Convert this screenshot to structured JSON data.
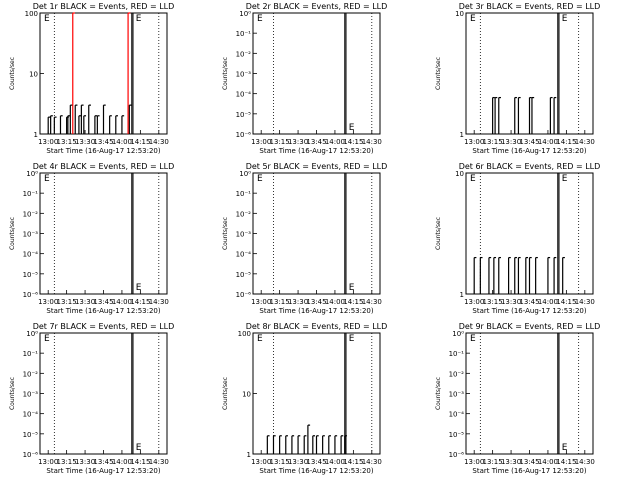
{
  "chart_data": [
    {
      "type": "line",
      "title": "Det 1r BLACK = Events, RED = LLD",
      "xlabel": "Start Time (16-Aug-17 12:53:20)",
      "ylabel": "Counts/sec",
      "x_ticks": [
        "13:00",
        "13:15",
        "13:30",
        "13:45",
        "14:00",
        "14:15",
        "14:30"
      ],
      "xlim": [
        "12:53:20",
        "14:36:40"
      ],
      "y_ticks": [
        "1",
        "10",
        "100"
      ],
      "ylim": [
        1,
        100
      ],
      "yscale": "log",
      "vlines_dotted": [
        "13:05",
        "14:30"
      ],
      "vlines_solid": [
        "14:08",
        "14:09"
      ],
      "annotations": [
        "E",
        "E"
      ],
      "series": [
        {
          "color": "#000000",
          "x": [
            "13:00",
            "13:02",
            "13:05",
            "13:10",
            "13:15",
            "13:16",
            "13:18",
            "13:22",
            "13:25",
            "13:27",
            "13:29",
            "13:33",
            "13:38",
            "13:40",
            "13:45",
            "13:50",
            "13:55",
            "14:00",
            "14:06"
          ],
          "y": [
            1.9,
            2.0,
            1.9,
            2.0,
            1.9,
            2.0,
            3.0,
            3.0,
            2.0,
            3.0,
            2.0,
            3.0,
            2.0,
            2.0,
            3.0,
            2.0,
            2.0,
            2.0,
            3.0
          ]
        },
        {
          "color": "#ff0000",
          "x": [
            "13:20",
            "14:05"
          ],
          "y": [
            100,
            100
          ]
        }
      ]
    },
    {
      "type": "line",
      "title": "Det 2r BLACK = Events, RED = LLD",
      "xlabel": "Start Time (16-Aug-17 12:53:20)",
      "ylabel": "Counts/sec",
      "x_ticks": [
        "13:00",
        "13:15",
        "13:30",
        "13:45",
        "14:00",
        "14:15",
        "14:30"
      ],
      "xlim": [
        "12:53:20",
        "14:36:40"
      ],
      "y_ticks": [
        "10⁰",
        "10⁻¹",
        "10⁻²",
        "10⁻³",
        "10⁻⁴",
        "10⁻⁵",
        "10⁻⁶"
      ],
      "ylim": [
        1e-06,
        1
      ],
      "yscale": "log",
      "vlines_dotted": [
        "13:10",
        "14:30"
      ],
      "vlines_solid": [
        "14:08",
        "14:09"
      ],
      "annotations": [
        "E",
        "E"
      ],
      "series": []
    },
    {
      "type": "line",
      "title": "Det 3r BLACK = Events, RED = LLD",
      "xlabel": "Start Time (16-Aug-17 12:53:20)",
      "ylabel": "Counts/sec",
      "x_ticks": [
        "13:00",
        "13:15",
        "13:30",
        "13:45",
        "14:00",
        "14:15",
        "14:30"
      ],
      "xlim": [
        "12:53:20",
        "14:36:40"
      ],
      "y_ticks": [
        "1",
        "10"
      ],
      "ylim": [
        1,
        10
      ],
      "yscale": "log",
      "vlines_dotted": [
        "13:05",
        "14:25"
      ],
      "vlines_solid": [
        "14:08",
        "14:09"
      ],
      "annotations": [
        "E",
        "E"
      ],
      "series": [
        {
          "color": "#000000",
          "x": [
            "13:15",
            "13:17",
            "13:20",
            "13:33",
            "13:36",
            "13:45",
            "13:47",
            "14:02",
            "14:05"
          ],
          "y": [
            2,
            2,
            2,
            2,
            2,
            2,
            2,
            2,
            2
          ]
        }
      ]
    },
    {
      "type": "line",
      "title": "Det 4r BLACK = Events, RED = LLD",
      "xlabel": "Start Time (16-Aug-17 12:53:20)",
      "ylabel": "Counts/sec",
      "x_ticks": [
        "13:00",
        "13:15",
        "13:30",
        "13:45",
        "14:00",
        "14:15",
        "14:30"
      ],
      "xlim": [
        "12:53:20",
        "14:36:40"
      ],
      "y_ticks": [
        "10⁰",
        "10⁻¹",
        "10⁻²",
        "10⁻³",
        "10⁻⁴",
        "10⁻⁵",
        "10⁻⁶"
      ],
      "ylim": [
        1e-06,
        1
      ],
      "yscale": "log",
      "vlines_dotted": [
        "13:05",
        "14:30"
      ],
      "vlines_solid": [
        "14:08",
        "14:09"
      ],
      "annotations": [
        "E",
        "E"
      ],
      "series": []
    },
    {
      "type": "line",
      "title": "Det 5r BLACK = Events, RED = LLD",
      "xlabel": "Start Time (16-Aug-17 12:53:20)",
      "ylabel": "Counts/sec",
      "x_ticks": [
        "13:00",
        "13:15",
        "13:30",
        "13:45",
        "14:00",
        "14:15",
        "14:30"
      ],
      "xlim": [
        "12:53:20",
        "14:36:40"
      ],
      "y_ticks": [
        "10⁰",
        "10⁻¹",
        "10⁻²",
        "10⁻³",
        "10⁻⁴",
        "10⁻⁵",
        "10⁻⁶"
      ],
      "ylim": [
        1e-06,
        1
      ],
      "yscale": "log",
      "vlines_dotted": [
        "13:10",
        "14:30"
      ],
      "vlines_solid": [
        "14:08",
        "14:09"
      ],
      "annotations": [
        "E",
        "E"
      ],
      "series": []
    },
    {
      "type": "line",
      "title": "Det 6r BLACK = Events, RED = LLD",
      "xlabel": "Start Time (16-Aug-17 12:53:20)",
      "ylabel": "Counts/sec",
      "x_ticks": [
        "13:00",
        "13:15",
        "13:30",
        "13:45",
        "14:00",
        "14:15",
        "14:30"
      ],
      "xlim": [
        "12:53:20",
        "14:36:40"
      ],
      "y_ticks": [
        "1",
        "10"
      ],
      "ylim": [
        1,
        10
      ],
      "yscale": "log",
      "vlines_dotted": [
        "13:05",
        "14:25"
      ],
      "vlines_solid": [
        "14:08",
        "14:09"
      ],
      "annotations": [
        "E",
        "E"
      ],
      "series": [
        {
          "color": "#000000",
          "x": [
            "13:00",
            "13:05",
            "13:12",
            "13:16",
            "13:20",
            "13:28",
            "13:33",
            "13:36",
            "13:42",
            "13:45",
            "13:50",
            "14:00",
            "14:05",
            "14:12"
          ],
          "y": [
            2,
            2,
            2,
            2,
            2,
            2,
            2,
            2,
            2,
            2,
            2,
            2,
            2,
            2
          ]
        }
      ]
    },
    {
      "type": "line",
      "title": "Det 7r BLACK = Events, RED = LLD",
      "xlabel": "Start Time (16-Aug-17 12:53:20)",
      "ylabel": "Counts/sec",
      "x_ticks": [
        "13:00",
        "13:15",
        "13:30",
        "13:45",
        "14:00",
        "14:15",
        "14:30"
      ],
      "xlim": [
        "12:53:20",
        "14:36:40"
      ],
      "y_ticks": [
        "10⁰",
        "10⁻¹",
        "10⁻²",
        "10⁻³",
        "10⁻⁴",
        "10⁻⁵",
        "10⁻⁶"
      ],
      "ylim": [
        1e-06,
        1
      ],
      "yscale": "log",
      "vlines_dotted": [
        "13:05",
        "14:30"
      ],
      "vlines_solid": [
        "14:08",
        "14:09"
      ],
      "annotations": [
        "E",
        "E"
      ],
      "series": []
    },
    {
      "type": "line",
      "title": "Det 8r BLACK = Events, RED = LLD",
      "xlabel": "Start Time (16-Aug-17 12:53:20)",
      "ylabel": "Counts/sec",
      "x_ticks": [
        "13:00",
        "13:15",
        "13:30",
        "13:45",
        "14:00",
        "14:15",
        "14:30"
      ],
      "xlim": [
        "12:53:20",
        "14:36:40"
      ],
      "y_ticks": [
        "1",
        "10",
        "100"
      ],
      "ylim": [
        1,
        100
      ],
      "yscale": "log",
      "vlines_dotted": [
        "13:10",
        "14:30"
      ],
      "vlines_solid": [
        "14:08",
        "14:09"
      ],
      "annotations": [
        "E",
        "E"
      ],
      "series": [
        {
          "color": "#000000",
          "x": [
            "13:05",
            "13:10",
            "13:15",
            "13:20",
            "13:25",
            "13:30",
            "13:35",
            "13:38",
            "13:42",
            "13:45",
            "13:50",
            "13:55",
            "14:00",
            "14:05",
            "14:08"
          ],
          "y": [
            2,
            2,
            2,
            2,
            2,
            2,
            2,
            3,
            2,
            2,
            2,
            2,
            2,
            2,
            2
          ]
        }
      ]
    },
    {
      "type": "line",
      "title": "Det 9r BLACK = Events, RED = LLD",
      "xlabel": "Start Time (16-Aug-17 12:53:20)",
      "ylabel": "Counts/sec",
      "x_ticks": [
        "13:00",
        "13:15",
        "13:30",
        "13:45",
        "14:00",
        "14:15",
        "14:30"
      ],
      "xlim": [
        "12:53:20",
        "14:36:40"
      ],
      "y_ticks": [
        "10⁰",
        "10⁻¹",
        "10⁻²",
        "10⁻³",
        "10⁻⁴",
        "10⁻⁵",
        "10⁻⁶"
      ],
      "ylim": [
        1e-06,
        1
      ],
      "yscale": "log",
      "vlines_dotted": [
        "13:05",
        "14:25"
      ],
      "vlines_solid": [
        "14:08",
        "14:09"
      ],
      "annotations": [
        "E",
        "E"
      ],
      "series": []
    }
  ]
}
